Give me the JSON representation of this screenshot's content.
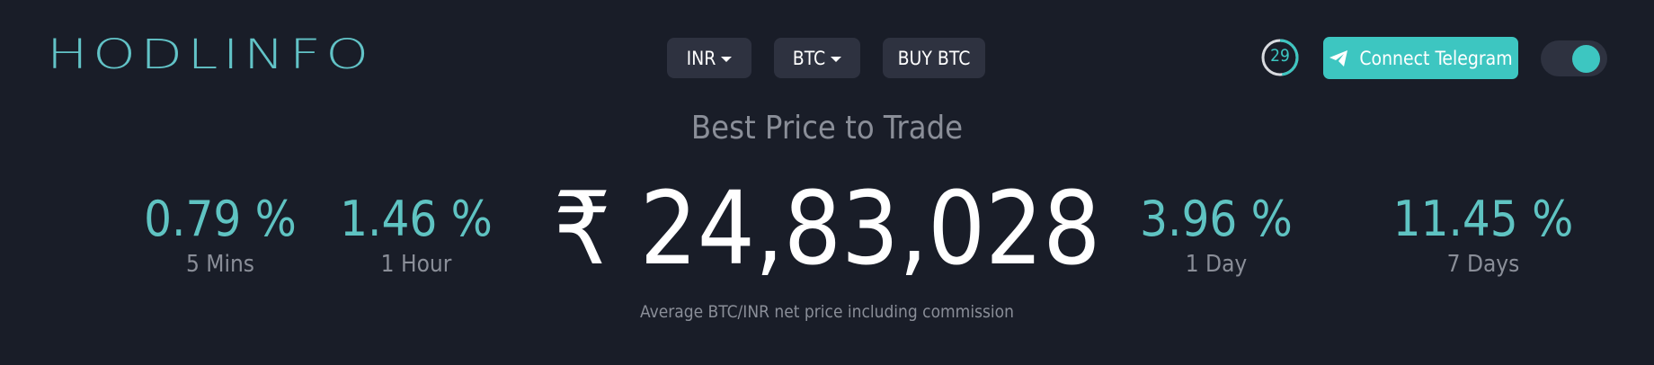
{
  "header": {
    "logo_text": "HODLINFO",
    "currency_dropdown": "INR",
    "crypto_dropdown": "BTC",
    "buy_button": "BUY BTC",
    "timer_value": "29",
    "timer_progress": 0.48,
    "telegram_button": "Connect Telegram",
    "theme_toggle_on": true
  },
  "main": {
    "subtitle": "Best Price to Trade",
    "price": "₹ 24,83,028",
    "caption": "Average BTC/INR net price including commission",
    "stats": [
      {
        "value": "0.79 %",
        "label": "5 Mins"
      },
      {
        "value": "1.46 %",
        "label": "1 Hour"
      },
      {
        "value": "3.96 %",
        "label": "1 Day"
      },
      {
        "value": "11.45 %",
        "label": "7 Days"
      }
    ]
  },
  "colors": {
    "background": "#191d28",
    "accent": "#3dc6c1",
    "muted_text": "#8a8e98",
    "button_bg": "#2e3240"
  }
}
